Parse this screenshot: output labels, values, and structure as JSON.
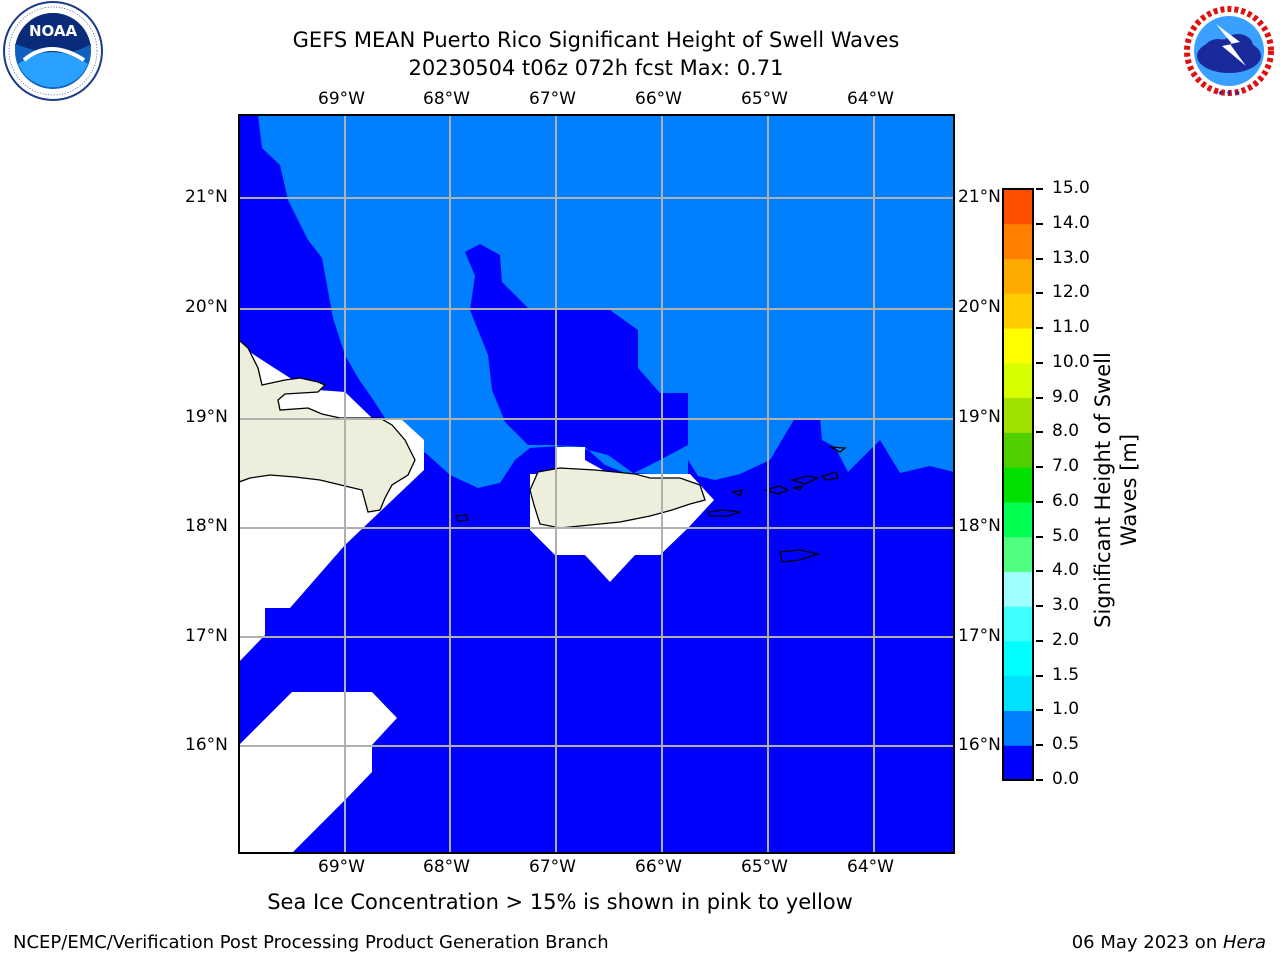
{
  "header": {
    "title_line1": "GEFS MEAN Puerto Rico Significant Height of Swell Waves",
    "title_line2": "20230504 t06z 072h fcst   Max: 0.71"
  },
  "logos": {
    "noaa_text": "NOAA",
    "noaa_ring": "NATIONAL OCEANIC AND ATMOSPHERIC ADMINISTRATION · U.S. DEPARTMENT OF COMMERCE",
    "nws_ring": "NATIONAL WEATHER SERVICE"
  },
  "map": {
    "lon_labels": [
      "69°W",
      "68°W",
      "67°W",
      "66°W",
      "65°W",
      "64°W"
    ],
    "lat_labels": [
      "21°N",
      "20°N",
      "19°N",
      "18°N",
      "17°N",
      "16°N"
    ],
    "colors": {
      "ocean_low": "#0000ff",
      "ocean_mid": "#0080ff",
      "land": "#eeeedd",
      "missing": "#ffffff",
      "grid": "#b0b0b0"
    }
  },
  "colorbar": {
    "label": "Significant Height of Swell Waves [m]",
    "label_line1": "Significant Height of Swell",
    "label_line2": "Waves [m]",
    "ticks": [
      "0.0",
      "0.5",
      "1.0",
      "1.5",
      "2.0",
      "3.0",
      "4.0",
      "5.0",
      "6.0",
      "7.0",
      "8.0",
      "9.0",
      "10.0",
      "11.0",
      "12.0",
      "13.0",
      "14.0",
      "15.0"
    ],
    "colors": [
      "#0000ff",
      "#0080ff",
      "#00e0ff",
      "#00ffff",
      "#40ffff",
      "#a0ffff",
      "#50ff80",
      "#00ff50",
      "#00e000",
      "#50d000",
      "#a0e000",
      "#d8ff00",
      "#ffff00",
      "#ffcc00",
      "#ffaa00",
      "#ff8000",
      "#ff5000",
      "#ff2000",
      "#ff0000"
    ]
  },
  "notes": {
    "ice_note": "Sea Ice Concentration > 15% is shown in pink to yellow"
  },
  "footer": {
    "left": "NCEP/EMC/Verification Post Processing Product Generation Branch",
    "right_date": "06 May 2023 on ",
    "right_host": "Hera"
  }
}
